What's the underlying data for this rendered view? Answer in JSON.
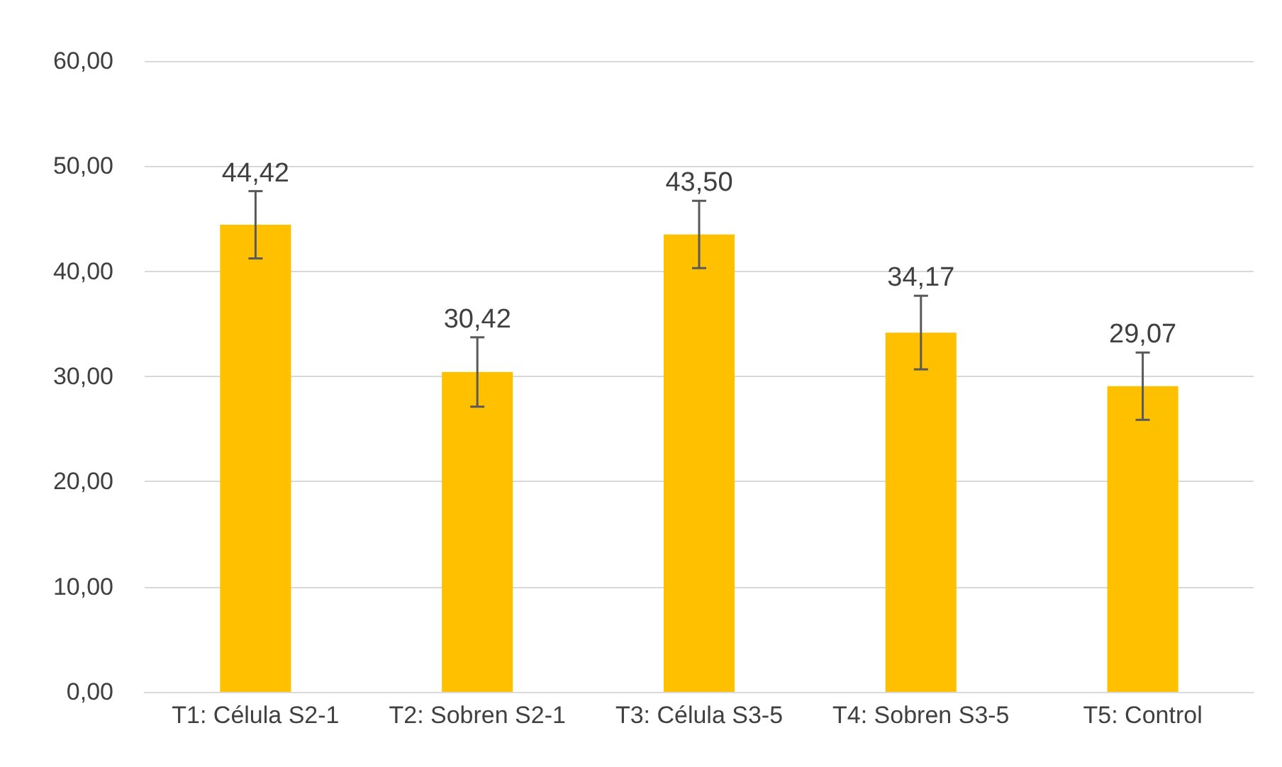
{
  "chart_data": {
    "type": "bar",
    "categories": [
      "T1: Célula S2-1",
      "T2: Sobren S2-1",
      "T3: Célula S3-5",
      "T4: Sobren S3-5",
      "T5: Control"
    ],
    "values": [
      44.42,
      30.42,
      43.5,
      34.17,
      29.07
    ],
    "value_labels": [
      "44,42",
      "30,42",
      "43,50",
      "34,17",
      "29,07"
    ],
    "errors": [
      3.2,
      3.3,
      3.2,
      3.5,
      3.2
    ],
    "color": "#ffc000",
    "ylim": [
      0,
      60
    ],
    "yticks": [
      {
        "value": 0,
        "label": "0,00"
      },
      {
        "value": 10,
        "label": "10,00"
      },
      {
        "value": 20,
        "label": "20,00"
      },
      {
        "value": 30,
        "label": "30,00"
      },
      {
        "value": 40,
        "label": "40,00"
      },
      {
        "value": 50,
        "label": "50,00"
      },
      {
        "value": 60,
        "label": "60,00"
      }
    ],
    "grid": "y"
  }
}
